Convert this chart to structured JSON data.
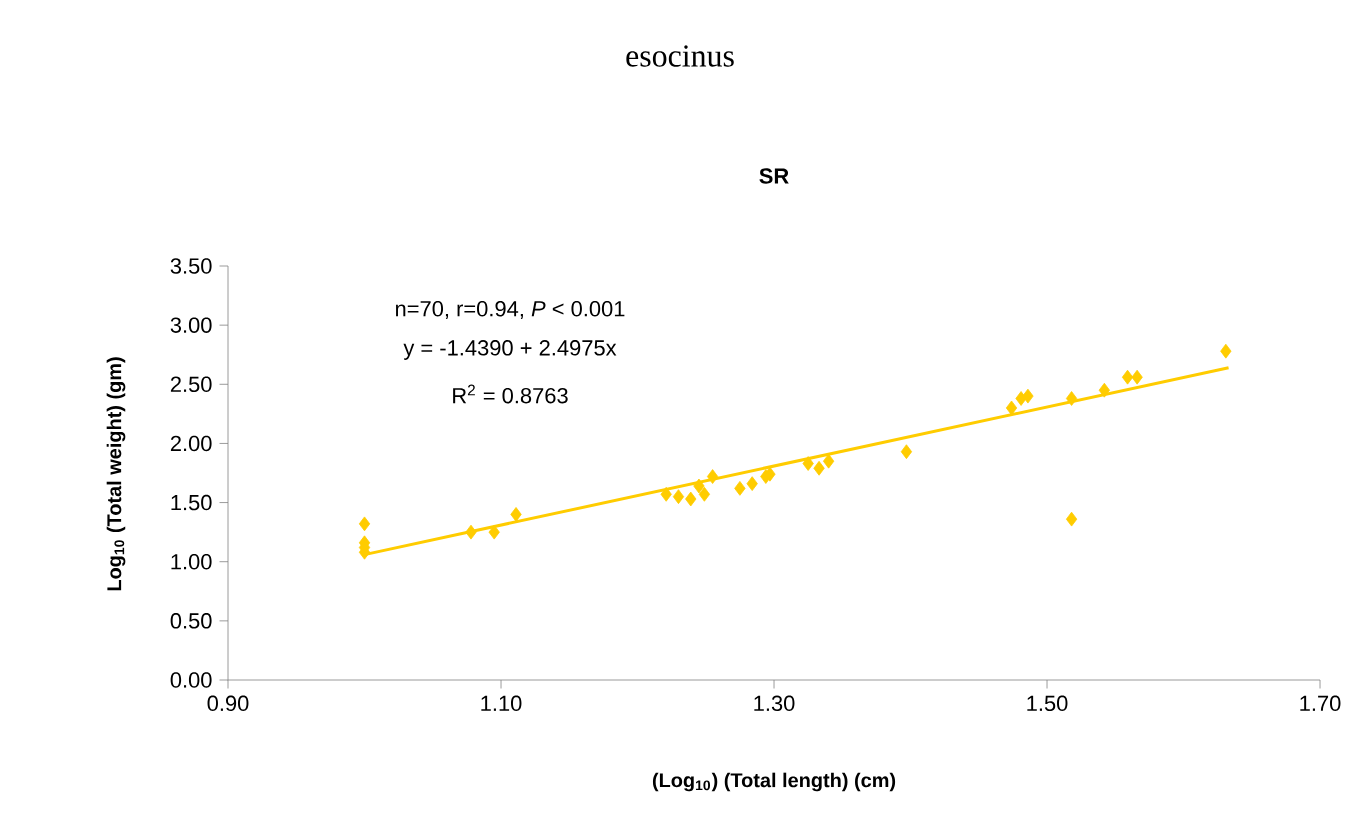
{
  "chart_data": {
    "type": "scatter",
    "title": "esocinus",
    "subtitle": "SR",
    "xlabel": "(Log$_{10}$) (Total length) (cm)",
    "ylabel": "Log$_{10}$ (Total weight) (gm)",
    "annotations": [
      "n=70, r=0.94, *P* < 0.001",
      "y = -1.4390 + 2.4975x",
      "R$^{2}$ = 0.8763"
    ],
    "xlim": [
      0.9,
      1.7
    ],
    "ylim": [
      0,
      3.5
    ],
    "xticks": [
      {
        "value": 0.9,
        "label": "0.90"
      },
      {
        "value": 1.1,
        "label": "1.10"
      },
      {
        "value": 1.3,
        "label": "1.30"
      },
      {
        "value": 1.5,
        "label": "1.50"
      },
      {
        "value": 1.7,
        "label": "1.70"
      }
    ],
    "yticks": [
      {
        "value": 0,
        "label": "0.00"
      },
      {
        "value": 0.5,
        "label": "0.50"
      },
      {
        "value": 1,
        "label": "1.00"
      },
      {
        "value": 1.5,
        "label": "1.50"
      },
      {
        "value": 2,
        "label": "2.00"
      },
      {
        "value": 2.5,
        "label": "2.50"
      },
      {
        "value": 3,
        "label": "3.00"
      },
      {
        "value": 3.5,
        "label": "3.50"
      }
    ],
    "grid": false,
    "marker": "diamond",
    "series": [
      {
        "color": "#ffcc00",
        "x": [
          1.0,
          1.0,
          1.0,
          1.0,
          1.078,
          1.095,
          1.111,
          1.221,
          1.23,
          1.239,
          1.249,
          1.255,
          1.245,
          1.275,
          1.284,
          1.294,
          1.297,
          1.325,
          1.333,
          1.34,
          1.397,
          1.474,
          1.481,
          1.486,
          1.518,
          1.518,
          1.542,
          1.559,
          1.566,
          1.631
        ],
        "values": [
          1.32,
          1.16,
          1.12,
          1.08,
          1.25,
          1.25,
          1.4,
          1.57,
          1.55,
          1.53,
          1.57,
          1.72,
          1.64,
          1.62,
          1.66,
          1.72,
          1.74,
          1.83,
          1.79,
          1.85,
          1.93,
          2.3,
          2.38,
          2.4,
          2.38,
          1.36,
          2.45,
          2.56,
          2.56,
          2.78
        ]
      },
      {
        "type": "line",
        "color": "#ffcc00",
        "marker": "none",
        "x": [
          1.0,
          1.633
        ],
        "values": [
          1.06,
          2.64
        ]
      }
    ]
  }
}
